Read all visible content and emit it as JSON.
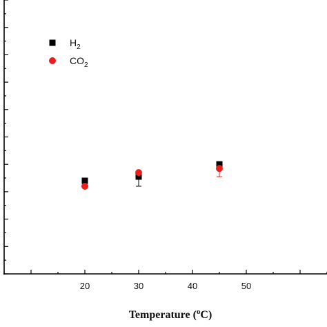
{
  "chart_data": {
    "type": "scatter",
    "title": "",
    "xlabel": "Temperature (°C)",
    "xlabel_parts": {
      "before": "Temperature (",
      "sup": "o",
      "after": "C)"
    },
    "ylabel": "",
    "xlim": [
      5,
      65
    ],
    "ylim": [
      0,
      10
    ],
    "x_ticks": [
      20,
      30,
      40,
      50
    ],
    "grid": false,
    "legend_position": "top-left",
    "series": [
      {
        "name": "H2",
        "name_main": "H",
        "name_sub": "2",
        "marker": "square",
        "color": "#000000",
        "points": [
          {
            "x": 20,
            "y": 3.4
          },
          {
            "x": 30,
            "y": 3.55
          },
          {
            "x": 45,
            "y": 4.0
          }
        ],
        "error_low": [
          0,
          0.35,
          0
        ],
        "error_high": [
          0,
          0,
          0
        ]
      },
      {
        "name": "CO2",
        "name_main": "CO",
        "name_sub": "2",
        "marker": "circle",
        "color": "#e8201c",
        "points": [
          {
            "x": 20,
            "y": 3.2
          },
          {
            "x": 30,
            "y": 3.7
          },
          {
            "x": 45,
            "y": 3.85
          }
        ],
        "error_low": [
          0,
          0,
          0.3
        ],
        "error_high": [
          0,
          0,
          0
        ]
      }
    ]
  }
}
